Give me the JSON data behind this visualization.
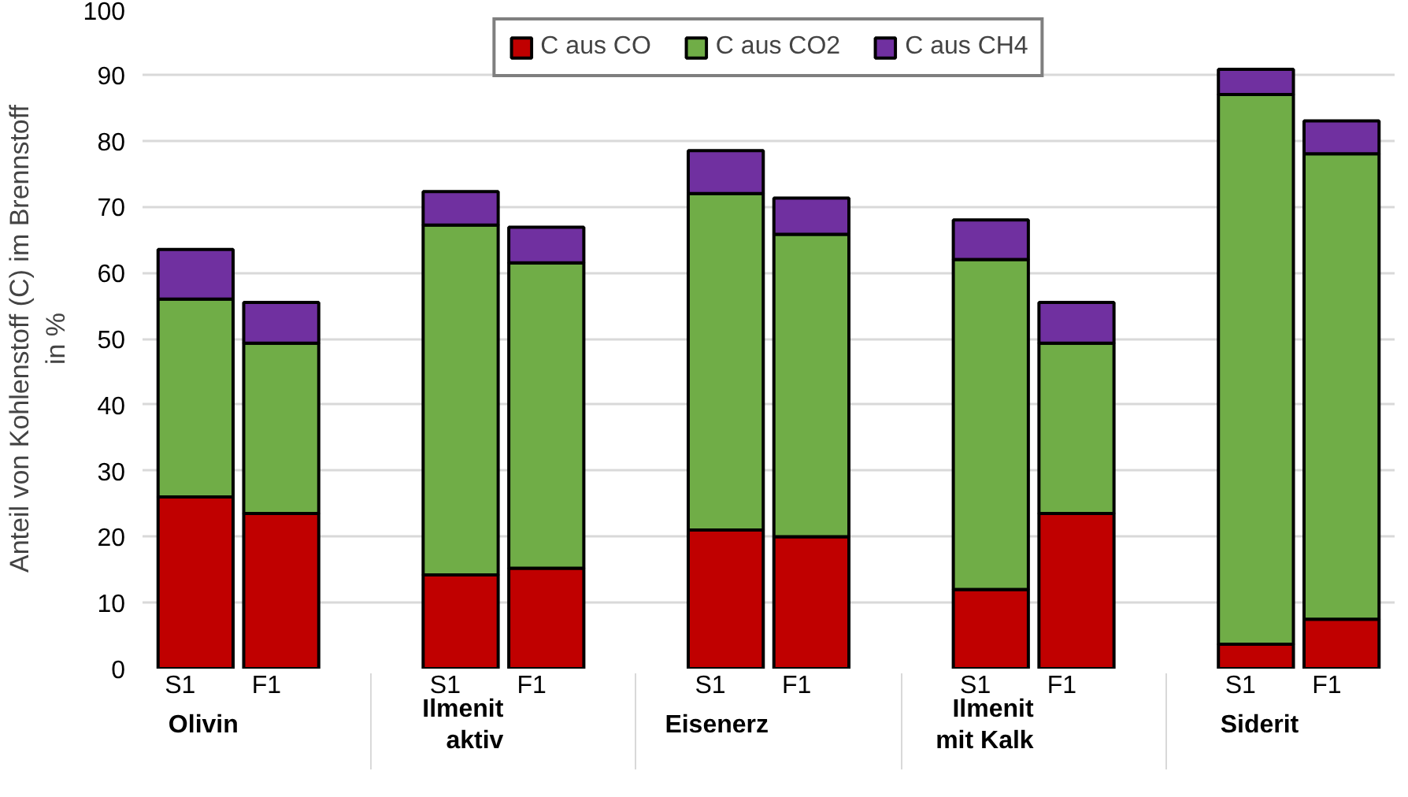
{
  "chart_data": {
    "type": "bar",
    "stacked": true,
    "ylabel": "Anteil von Kohlenstoff (C) im Brennstoff in %",
    "categories": [
      "S1",
      "F1",
      "S1",
      "F1",
      "S1",
      "F1",
      "S1",
      "F1",
      "S1",
      "F1"
    ],
    "annotations": [
      "Olivin",
      "Ilmenit aktiv",
      "Eisenerz",
      "Ilmenit mit Kalk",
      "Siderit"
    ],
    "series": [
      {
        "name": "C aus CO",
        "color": "#c00000",
        "values": [
          26,
          23.5,
          14.2,
          15.2,
          21,
          20,
          12,
          23.5,
          3.7,
          7.5
        ]
      },
      {
        "name": "C aus CO2",
        "color": "#70ad47",
        "values": [
          30,
          25.8,
          53,
          46.3,
          51,
          45.8,
          50,
          25.8,
          83.3,
          70.5
        ]
      },
      {
        "name": "C aus CH4",
        "color": "#7030a0",
        "values": [
          7.5,
          6.2,
          5.1,
          5.4,
          6.5,
          5.5,
          6,
          6.2,
          3.8,
          5
        ]
      }
    ],
    "ylim": [
      0,
      100
    ],
    "yticks": [
      0,
      10,
      20,
      30,
      40,
      50,
      60,
      70,
      80,
      90,
      100
    ],
    "grid": "y",
    "legend": "top"
  }
}
